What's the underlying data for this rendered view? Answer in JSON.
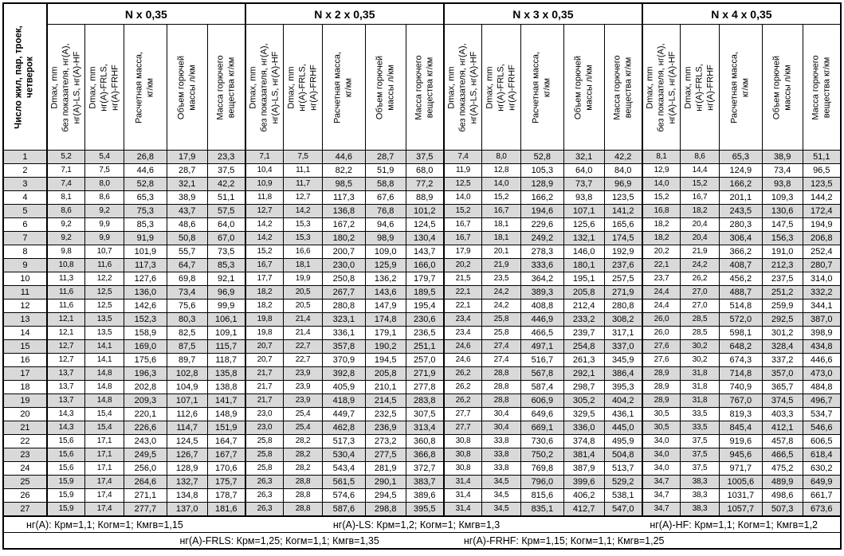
{
  "table": {
    "corner_header": "Число жил, пар, троек,\nчетверок",
    "group_titles": [
      "N x 0,35",
      "N x 2 x 0,35",
      "N x 3 x 0,35",
      "N x 4 x 0,35"
    ],
    "sub_headers": [
      "Dmax, mm\nбез показателя, нг(А),\nнг(А)-LS, нг(А)-HF",
      "Dmax, mm\nнг(А)-FRLS,\nнг(А)-FRHF",
      "Расчетная масса,\nкг/км",
      "Объем горючей\nмассы л/км",
      "Масса горючего\nвещества кг/км"
    ],
    "colors": {
      "stripe": "#d9d9d9",
      "border": "#000000",
      "background": "#ffffff"
    },
    "rows": [
      [
        "1",
        "5,2",
        "5,4",
        "26,8",
        "17,9",
        "23,3",
        "7,1",
        "7,5",
        "44,6",
        "28,7",
        "37,5",
        "7,4",
        "8,0",
        "52,8",
        "32,1",
        "42,2",
        "8,1",
        "8,6",
        "65,3",
        "38,9",
        "51,1"
      ],
      [
        "2",
        "7,1",
        "7,5",
        "44,6",
        "28,7",
        "37,5",
        "10,4",
        "11,1",
        "82,2",
        "51,9",
        "68,0",
        "11,9",
        "12,8",
        "105,3",
        "64,0",
        "84,0",
        "12,9",
        "14,4",
        "124,9",
        "73,4",
        "96,5"
      ],
      [
        "3",
        "7,4",
        "8,0",
        "52,8",
        "32,1",
        "42,2",
        "10,9",
        "11,7",
        "98,5",
        "58,8",
        "77,2",
        "12,5",
        "14,0",
        "128,9",
        "73,7",
        "96,9",
        "14,0",
        "15,2",
        "166,2",
        "93,8",
        "123,5"
      ],
      [
        "4",
        "8,1",
        "8,6",
        "65,3",
        "38,9",
        "51,1",
        "11,8",
        "12,7",
        "117,3",
        "67,6",
        "88,9",
        "14,0",
        "15,2",
        "166,2",
        "93,8",
        "123,5",
        "15,2",
        "16,7",
        "201,1",
        "109,3",
        "144,2"
      ],
      [
        "5",
        "8,6",
        "9,2",
        "75,3",
        "43,7",
        "57,5",
        "12,7",
        "14,2",
        "136,8",
        "76,8",
        "101,2",
        "15,2",
        "16,7",
        "194,6",
        "107,1",
        "141,2",
        "16,8",
        "18,2",
        "243,5",
        "130,6",
        "172,4"
      ],
      [
        "6",
        "9,2",
        "9,9",
        "85,3",
        "48,6",
        "64,0",
        "14,2",
        "15,3",
        "167,2",
        "94,6",
        "124,5",
        "16,7",
        "18,1",
        "229,6",
        "125,6",
        "165,6",
        "18,2",
        "20,4",
        "280,3",
        "147,5",
        "194,9"
      ],
      [
        "7",
        "9,2",
        "9,9",
        "91,9",
        "50,8",
        "67,0",
        "14,2",
        "15,3",
        "180,2",
        "98,9",
        "130,4",
        "16,7",
        "18,1",
        "249,2",
        "132,1",
        "174,5",
        "18,2",
        "20,4",
        "306,4",
        "156,3",
        "206,8"
      ],
      [
        "8",
        "9,8",
        "10,7",
        "101,9",
        "55,7",
        "73,5",
        "15,2",
        "16,6",
        "200,7",
        "109,0",
        "143,7",
        "17,9",
        "20,1",
        "278,3",
        "146,0",
        "192,9",
        "20,2",
        "21,9",
        "366,2",
        "191,0",
        "252,4"
      ],
      [
        "9",
        "10,8",
        "11,6",
        "117,3",
        "64,7",
        "85,3",
        "16,7",
        "18,1",
        "230,0",
        "125,9",
        "166,0",
        "20,2",
        "21,9",
        "333,6",
        "180,1",
        "237,6",
        "22,1",
        "24,2",
        "408,7",
        "212,3",
        "280,7"
      ],
      [
        "10",
        "11,3",
        "12,2",
        "127,6",
        "69,8",
        "92,1",
        "17,7",
        "19,9",
        "250,8",
        "136,2",
        "179,7",
        "21,5",
        "23,5",
        "364,2",
        "195,1",
        "257,5",
        "23,7",
        "26,2",
        "456,2",
        "237,5",
        "314,0"
      ],
      [
        "11",
        "11,6",
        "12,5",
        "136,0",
        "73,4",
        "96,9",
        "18,2",
        "20,5",
        "267,7",
        "143,6",
        "189,5",
        "22,1",
        "24,2",
        "389,3",
        "205,8",
        "271,9",
        "24,4",
        "27,0",
        "488,7",
        "251,2",
        "332,2"
      ],
      [
        "12",
        "11,6",
        "12,5",
        "142,6",
        "75,6",
        "99,9",
        "18,2",
        "20,5",
        "280,8",
        "147,9",
        "195,4",
        "22,1",
        "24,2",
        "408,8",
        "212,4",
        "280,8",
        "24,4",
        "27,0",
        "514,8",
        "259,9",
        "344,1"
      ],
      [
        "13",
        "12,1",
        "13,5",
        "152,3",
        "80,3",
        "106,1",
        "19,8",
        "21,4",
        "323,1",
        "174,8",
        "230,6",
        "23,4",
        "25,8",
        "446,9",
        "233,2",
        "308,2",
        "26,0",
        "28,5",
        "572,0",
        "292,5",
        "387,0"
      ],
      [
        "14",
        "12,1",
        "13,5",
        "158,9",
        "82,5",
        "109,1",
        "19,8",
        "21,4",
        "336,1",
        "179,1",
        "236,5",
        "23,4",
        "25,8",
        "466,5",
        "239,7",
        "317,1",
        "26,0",
        "28,5",
        "598,1",
        "301,2",
        "398,9"
      ],
      [
        "15",
        "12,7",
        "14,1",
        "169,0",
        "87,5",
        "115,7",
        "20,7",
        "22,7",
        "357,8",
        "190,2",
        "251,1",
        "24,6",
        "27,4",
        "497,1",
        "254,8",
        "337,0",
        "27,6",
        "30,2",
        "648,2",
        "328,4",
        "434,8"
      ],
      [
        "16",
        "12,7",
        "14,1",
        "175,6",
        "89,7",
        "118,7",
        "20,7",
        "22,7",
        "370,9",
        "194,5",
        "257,0",
        "24,6",
        "27,4",
        "516,7",
        "261,3",
        "345,9",
        "27,6",
        "30,2",
        "674,3",
        "337,2",
        "446,6"
      ],
      [
        "17",
        "13,7",
        "14,8",
        "196,3",
        "102,8",
        "135,8",
        "21,7",
        "23,9",
        "392,8",
        "205,8",
        "271,9",
        "26,2",
        "28,8",
        "567,8",
        "292,1",
        "386,4",
        "28,9",
        "31,8",
        "714,8",
        "357,0",
        "473,0"
      ],
      [
        "18",
        "13,7",
        "14,8",
        "202,8",
        "104,9",
        "138,8",
        "21,7",
        "23,9",
        "405,9",
        "210,1",
        "277,8",
        "26,2",
        "28,8",
        "587,4",
        "298,7",
        "395,3",
        "28,9",
        "31,8",
        "740,9",
        "365,7",
        "484,8"
      ],
      [
        "19",
        "13,7",
        "14,8",
        "209,3",
        "107,1",
        "141,7",
        "21,7",
        "23,9",
        "418,9",
        "214,5",
        "283,8",
        "26,2",
        "28,8",
        "606,9",
        "305,2",
        "404,2",
        "28,9",
        "31,8",
        "767,0",
        "374,5",
        "496,7"
      ],
      [
        "20",
        "14,3",
        "15,4",
        "220,1",
        "112,6",
        "148,9",
        "23,0",
        "25,4",
        "449,7",
        "232,5",
        "307,5",
        "27,7",
        "30,4",
        "649,6",
        "329,5",
        "436,1",
        "30,5",
        "33,5",
        "819,3",
        "403,3",
        "534,7"
      ],
      [
        "21",
        "14,3",
        "15,4",
        "226,6",
        "114,7",
        "151,9",
        "23,0",
        "25,4",
        "462,8",
        "236,9",
        "313,4",
        "27,7",
        "30,4",
        "669,1",
        "336,0",
        "445,0",
        "30,5",
        "33,5",
        "845,4",
        "412,1",
        "546,6"
      ],
      [
        "22",
        "15,6",
        "17,1",
        "243,0",
        "124,5",
        "164,7",
        "25,8",
        "28,2",
        "517,3",
        "273,2",
        "360,8",
        "30,8",
        "33,8",
        "730,6",
        "374,8",
        "495,9",
        "34,0",
        "37,5",
        "919,6",
        "457,8",
        "606,5"
      ],
      [
        "23",
        "15,6",
        "17,1",
        "249,5",
        "126,7",
        "167,7",
        "25,8",
        "28,2",
        "530,4",
        "277,5",
        "366,8",
        "30,8",
        "33,8",
        "750,2",
        "381,4",
        "504,8",
        "34,0",
        "37,5",
        "945,6",
        "466,5",
        "618,4"
      ],
      [
        "24",
        "15,6",
        "17,1",
        "256,0",
        "128,9",
        "170,6",
        "25,8",
        "28,2",
        "543,4",
        "281,9",
        "372,7",
        "30,8",
        "33,8",
        "769,8",
        "387,9",
        "513,7",
        "34,0",
        "37,5",
        "971,7",
        "475,2",
        "630,2"
      ],
      [
        "25",
        "15,9",
        "17,4",
        "264,6",
        "132,7",
        "175,7",
        "26,3",
        "28,8",
        "561,5",
        "290,1",
        "383,7",
        "31,4",
        "34,5",
        "796,0",
        "399,6",
        "529,2",
        "34,7",
        "38,3",
        "1005,6",
        "489,9",
        "649,9"
      ],
      [
        "26",
        "15,9",
        "17,4",
        "271,1",
        "134,8",
        "178,7",
        "26,3",
        "28,8",
        "574,6",
        "294,5",
        "389,6",
        "31,4",
        "34,5",
        "815,6",
        "406,2",
        "538,1",
        "34,7",
        "38,3",
        "1031,7",
        "498,6",
        "661,7"
      ],
      [
        "27",
        "15,9",
        "17,4",
        "277,7",
        "137,0",
        "181,6",
        "26,3",
        "28,8",
        "587,6",
        "298,8",
        "395,5",
        "31,4",
        "34,5",
        "835,1",
        "412,7",
        "547,0",
        "34,7",
        "38,3",
        "1057,7",
        "507,3",
        "673,6"
      ]
    ],
    "footer": {
      "line1": [
        "нг(А): Крм=1,1;  Когм=1;  Кмгв=1,15",
        "нг(А)-LS: Крм=1,2;  Когм=1;  Кмгв=1,3",
        "нг(А)-HF: Крм=1,1;  Когм=1;  Кмгв=1,2"
      ],
      "line2": [
        "нг(А)-FRLS: Крм=1,25;  Когм=1,1;  Кмгв=1,35",
        "нг(А)-FRHF: Крм=1,15;  Когм=1,1;  Кмгв=1,25"
      ]
    }
  }
}
